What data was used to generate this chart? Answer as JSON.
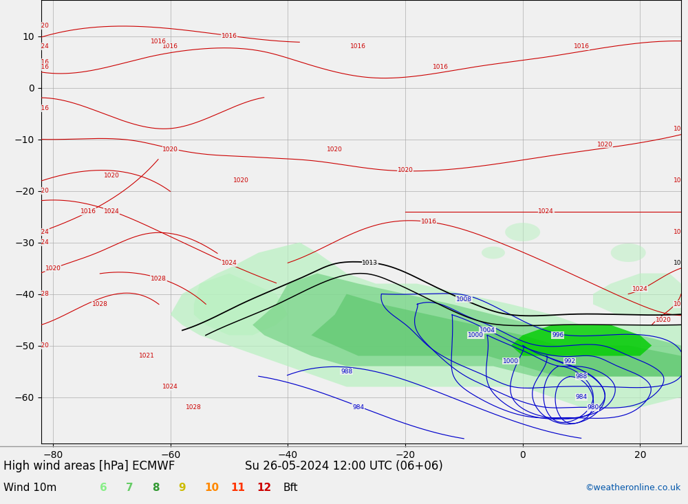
{
  "title_line1": "High wind areas [hPa] ECMWF",
  "title_line2": "Wind 10m",
  "datetime_str": "Su 26-05-2024 12:00 UTC (06+06)",
  "credit": "©weatheronline.co.uk",
  "legend_values": [
    "6",
    "7",
    "8",
    "9",
    "10",
    "11",
    "12",
    "Bft"
  ],
  "legend_colors": [
    "#aaffaa",
    "#77cc77",
    "#44aa44",
    "#ccaa00",
    "#ff8800",
    "#ff4400",
    "#cc0000",
    "#000000"
  ],
  "bg_color": "#f0f0f0",
  "sea_color": "#f0f0f0",
  "land_color": "#c8f0a0",
  "land_edge": "#888888",
  "grid_color": "#aaaaaa",
  "isobar_red": "#cc0000",
  "isobar_blue": "#0000cc",
  "isobar_black": "#000000",
  "wind_light": "#b8f0c0",
  "wind_mid": "#70d080",
  "wind_dark": "#20a040",
  "wind_intense": "#00cc00",
  "credit_color": "#0055aa",
  "title_fontsize": 12,
  "legend_fontsize": 11,
  "lon_min": -82,
  "lon_max": 27,
  "lat_min": -69,
  "lat_max": 17,
  "lon_ticks": [
    -80,
    -70,
    -60,
    -50,
    -40,
    -30,
    -20,
    -10,
    0,
    10,
    20
  ],
  "lat_ticks": [
    -60,
    -50,
    -40,
    -30,
    -20,
    -10,
    0,
    10
  ]
}
